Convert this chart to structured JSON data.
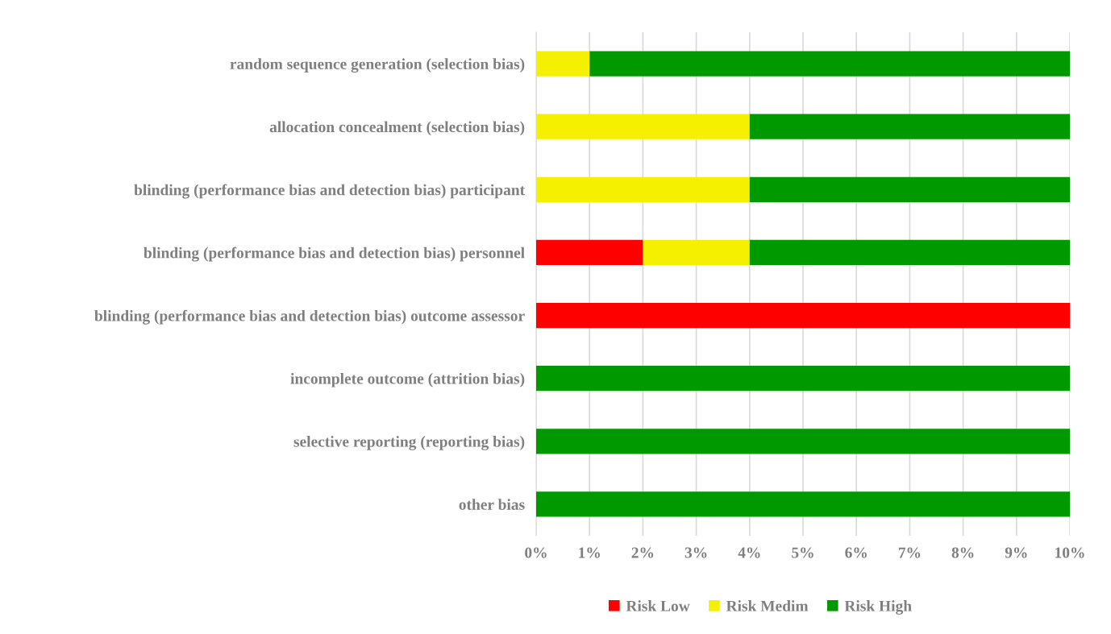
{
  "chart_data": {
    "type": "bar",
    "orientation": "horizontal",
    "stacked": true,
    "categories": [
      "random sequence generation (selection bias)",
      "allocation concealment (selection bias)",
      "blinding (performance bias and detection bias) participant",
      "blinding (performance bias and detection bias) personnel",
      "blinding (performance bias and detection bias) outcome assessor",
      "incomplete outcome (attrition bias)",
      "selective reporting (reporting bias)",
      "other bias"
    ],
    "series": [
      {
        "name": "Risk Low",
        "color": "#ff0000",
        "values": [
          0,
          0,
          0,
          2,
          10,
          0,
          0,
          0
        ]
      },
      {
        "name": "Risk Medim",
        "color": "#f5f000",
        "values": [
          1,
          4,
          4,
          2,
          0,
          0,
          0,
          0
        ]
      },
      {
        "name": "Risk High",
        "color": "#009a00",
        "values": [
          9,
          6,
          6,
          6,
          0,
          10,
          10,
          10
        ]
      }
    ],
    "xlim": [
      0,
      10
    ],
    "xticks": [
      {
        "value": 0,
        "label": "0%"
      },
      {
        "value": 1,
        "label": "1%"
      },
      {
        "value": 2,
        "label": "2%"
      },
      {
        "value": 3,
        "label": "3%"
      },
      {
        "value": 4,
        "label": "4%"
      },
      {
        "value": 5,
        "label": "5%"
      },
      {
        "value": 6,
        "label": "6%"
      },
      {
        "value": 7,
        "label": "7%"
      },
      {
        "value": 8,
        "label": "8%"
      },
      {
        "value": 9,
        "label": "9%"
      },
      {
        "value": 10,
        "label": "10%"
      }
    ],
    "grid": "x",
    "legend": "bottom"
  }
}
